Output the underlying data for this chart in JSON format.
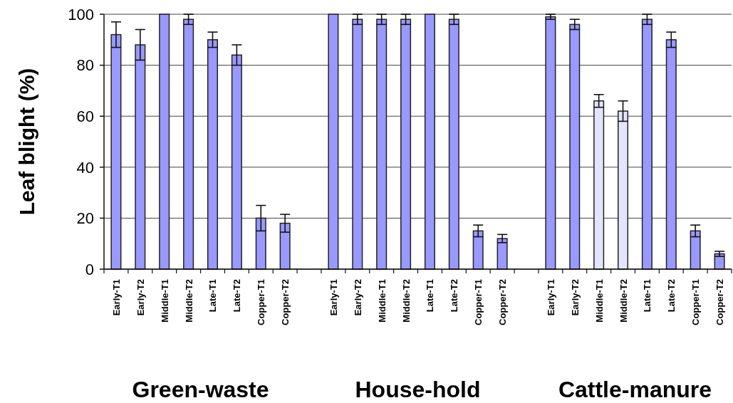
{
  "chart_data": {
    "type": "bar",
    "ylabel": "Leaf blight (%)",
    "categories": [
      "Early-T1",
      "Early-T2",
      "Middle-T1",
      "Middle-T2",
      "Late-T1",
      "Late-T2",
      "Copper-T1",
      "Copper-T2",
      null,
      "Early-T1",
      "Early-T2",
      "Middle-T1",
      "Middle-T2",
      "Late-T1",
      "Late-T2",
      "Copper-T1",
      "Copper-T2",
      null,
      "Early-T1",
      "Early-T2",
      "Middle-T1",
      "Middle-T2",
      "Late-T1",
      "Late-T2",
      "Copper-T1",
      "Copper-T2"
    ],
    "values": [
      92,
      88,
      100,
      98,
      90,
      84,
      20,
      18,
      null,
      100,
      98,
      98,
      98,
      100,
      98,
      15,
      12,
      null,
      99,
      96,
      66,
      62,
      98,
      90,
      15,
      6
    ],
    "errors": [
      5,
      6,
      null,
      2,
      3,
      4,
      5,
      3.5,
      null,
      null,
      2,
      2,
      2,
      null,
      2,
      2.3,
      1.6,
      null,
      1,
      2,
      2.5,
      4,
      2,
      3,
      2.3,
      1
    ],
    "colors": [
      "#9999ff",
      "#9999ff",
      "#9999ff",
      "#9999ff",
      "#9999ff",
      "#9999ff",
      "#9999ff",
      "#9999ff",
      null,
      "#9999ff",
      "#9999ff",
      "#9999ff",
      "#9999ff",
      "#9999ff",
      "#9999ff",
      "#9999ff",
      "#9999ff",
      null,
      "#9999ff",
      "#9999ff",
      "#e4e4ff",
      "#e4e4ff",
      "#9999ff",
      "#9999ff",
      "#9999ff",
      "#9999ff"
    ],
    "annotations": [
      "Green-waste",
      "House-hold",
      "Cattle-manure"
    ],
    "ylim": [
      0,
      100
    ],
    "yticks": [
      0,
      20,
      40,
      60,
      80,
      100
    ],
    "grid": "y"
  }
}
